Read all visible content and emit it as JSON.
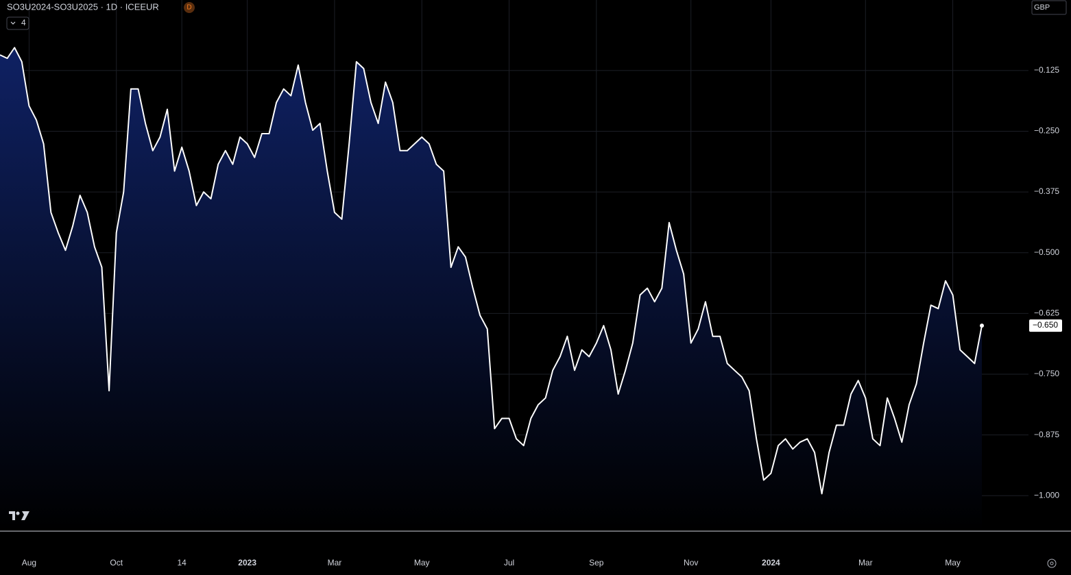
{
  "chart_data": {
    "type": "area",
    "title": "SO3U2024-SO3U2025 · 1D · ICEEUR",
    "interval_badge": "D",
    "indicator_count": "4",
    "currency": "GBP",
    "color": "#ffffff",
    "fill_color": "#0f2163",
    "grid": true,
    "categories": [
      null,
      null,
      null,
      null,
      "Aug",
      null,
      null,
      null,
      null,
      null,
      null,
      null,
      null,
      null,
      null,
      null,
      "Oct",
      null,
      null,
      null,
      null,
      null,
      null,
      null,
      null,
      "14",
      null,
      null,
      null,
      null,
      null,
      null,
      null,
      null,
      "2023",
      null,
      null,
      null,
      null,
      null,
      null,
      null,
      null,
      null,
      null,
      null,
      "Mar",
      null,
      null,
      null,
      null,
      null,
      null,
      null,
      null,
      null,
      null,
      null,
      "May",
      null,
      null,
      null,
      null,
      null,
      null,
      null,
      null,
      null,
      null,
      null,
      "Jul",
      null,
      null,
      null,
      null,
      null,
      null,
      null,
      null,
      null,
      null,
      null,
      "Sep",
      null,
      null,
      null,
      null,
      null,
      null,
      null,
      null,
      null,
      null,
      null,
      null,
      "Nov",
      null,
      null,
      null,
      null,
      null,
      null,
      null,
      null,
      null,
      null,
      "2024",
      null,
      null,
      null,
      null,
      null,
      null,
      null,
      null,
      null,
      null,
      null,
      null,
      "Mar",
      null,
      null,
      null,
      null,
      null,
      null,
      null,
      null,
      null,
      null,
      null,
      "May",
      null,
      null,
      null,
      null
    ],
    "values": [
      -0.093,
      -0.1,
      -0.078,
      -0.107,
      -0.198,
      -0.227,
      -0.276,
      -0.417,
      -0.459,
      -0.495,
      -0.445,
      -0.382,
      -0.417,
      -0.488,
      -0.53,
      -0.784,
      -0.459,
      -0.375,
      -0.163,
      -0.163,
      -0.234,
      -0.29,
      -0.262,
      -0.205,
      -0.332,
      -0.283,
      -0.332,
      -0.403,
      -0.375,
      -0.389,
      -0.318,
      -0.29,
      -0.318,
      -0.262,
      -0.276,
      -0.304,
      -0.255,
      -0.255,
      -0.191,
      -0.163,
      -0.177,
      -0.114,
      -0.191,
      -0.248,
      -0.234,
      -0.332,
      -0.417,
      -0.431,
      -0.276,
      -0.107,
      -0.121,
      -0.191,
      -0.234,
      -0.149,
      -0.191,
      -0.29,
      -0.29,
      -0.276,
      -0.262,
      -0.276,
      -0.318,
      -0.332,
      -0.53,
      -0.488,
      -0.509,
      -0.572,
      -0.629,
      -0.657,
      -0.862,
      -0.841,
      -0.841,
      -0.883,
      -0.897,
      -0.841,
      -0.813,
      -0.799,
      -0.742,
      -0.714,
      -0.672,
      -0.742,
      -0.7,
      -0.714,
      -0.686,
      -0.65,
      -0.7,
      -0.791,
      -0.742,
      -0.686,
      -0.587,
      -0.573,
      -0.601,
      -0.573,
      -0.438,
      -0.495,
      -0.544,
      -0.686,
      -0.657,
      -0.601,
      -0.672,
      -0.672,
      -0.728,
      -0.742,
      -0.756,
      -0.784,
      -0.883,
      -0.968,
      -0.954,
      -0.897,
      -0.883,
      -0.904,
      -0.89,
      -0.883,
      -0.911,
      -0.996,
      -0.911,
      -0.855,
      -0.855,
      -0.791,
      -0.763,
      -0.799,
      -0.883,
      -0.897,
      -0.799,
      -0.841,
      -0.89,
      -0.813,
      -0.77,
      -0.686,
      -0.608,
      -0.615,
      -0.558,
      -0.587,
      -0.7,
      -0.714,
      -0.728,
      -0.65
    ],
    "last_price": {
      "value": -0.65,
      "label": "−0.650"
    },
    "ylim": [
      -1.073,
      0.02
    ],
    "yticks": [
      {
        "value": -0.125,
        "label": "−0.125"
      },
      {
        "value": -0.25,
        "label": "−0.250"
      },
      {
        "value": -0.375,
        "label": "−0.375"
      },
      {
        "value": -0.5,
        "label": "−0.500"
      },
      {
        "value": -0.625,
        "label": "−0.625"
      },
      {
        "value": -0.75,
        "label": "−0.750"
      },
      {
        "value": -0.875,
        "label": "−0.875"
      },
      {
        "value": -1.0,
        "label": "−1.000"
      }
    ]
  }
}
